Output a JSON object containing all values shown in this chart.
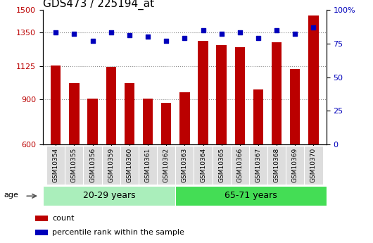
{
  "title": "GDS473 / 225194_at",
  "samples": [
    "GSM10354",
    "GSM10355",
    "GSM10356",
    "GSM10359",
    "GSM10360",
    "GSM10361",
    "GSM10362",
    "GSM10363",
    "GSM10364",
    "GSM10365",
    "GSM10366",
    "GSM10367",
    "GSM10368",
    "GSM10369",
    "GSM10370"
  ],
  "counts": [
    1130,
    1010,
    905,
    1120,
    1010,
    905,
    880,
    950,
    1290,
    1265,
    1250,
    970,
    1285,
    1105,
    1460
  ],
  "percentile_ranks": [
    83,
    82,
    77,
    83,
    81,
    80,
    77,
    79,
    85,
    82,
    83,
    79,
    85,
    82,
    87
  ],
  "group_labels": [
    "20-29 years",
    "65-71 years"
  ],
  "group_sizes": [
    7,
    8
  ],
  "ylim_left": [
    600,
    1500
  ],
  "ylim_right": [
    0,
    100
  ],
  "yticks_left": [
    600,
    900,
    1125,
    1350,
    1500
  ],
  "yticks_right": [
    0,
    25,
    50,
    75,
    100
  ],
  "bar_color": "#BB0000",
  "dot_color": "#0000BB",
  "group_colors": [
    "#AAEEBB",
    "#44DD55"
  ],
  "age_label": "age",
  "legend_count_label": "count",
  "legend_pct_label": "percentile rank within the sample",
  "grid_line_color": "#888888",
  "title_fontsize": 11,
  "tick_fontsize": 8,
  "bar_width": 0.55
}
